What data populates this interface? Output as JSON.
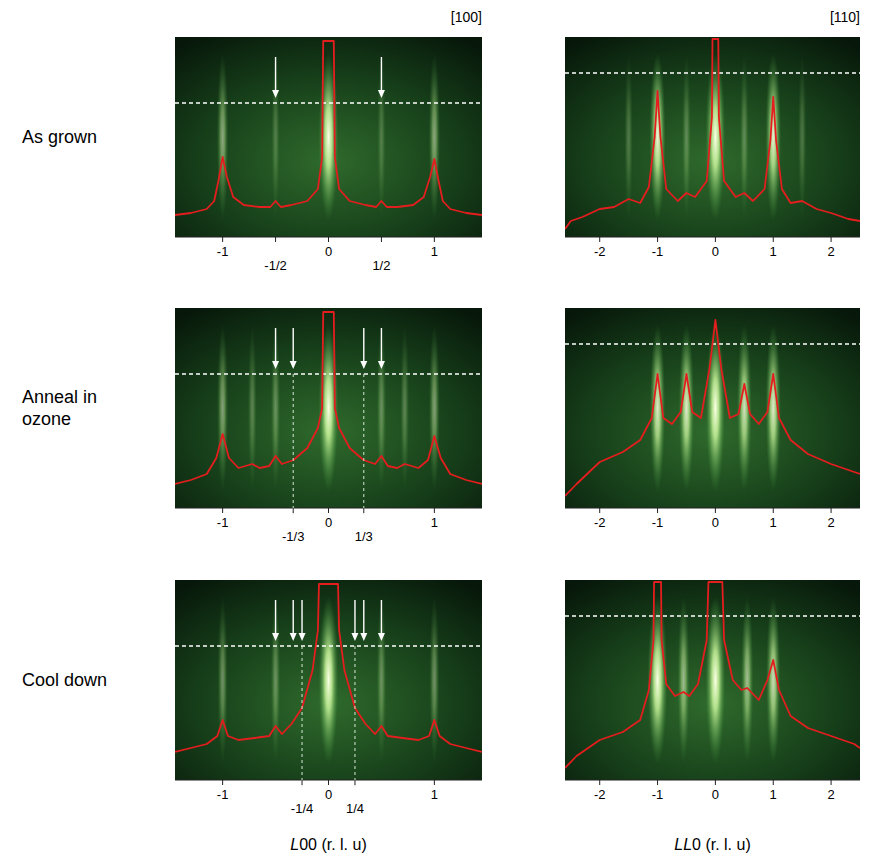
{
  "column_labels": [
    "[100]",
    "[110]"
  ],
  "row_labels": [
    "As grown",
    "Anneal in ozone",
    "Cool down"
  ],
  "chart_data": [
    {
      "type": "line",
      "tick_labels": "x",
      "grid": false,
      "xlim": [
        -1.45,
        1.45
      ],
      "ylim": [
        0,
        100
      ],
      "xticks": [
        -1,
        {
          "value": -0.5,
          "label": "-1/2"
        },
        0,
        {
          "value": 0.5,
          "label": "1/2"
        },
        1
      ],
      "arrows": [
        -0.5,
        0.5
      ],
      "x": [
        -1.45,
        -1.3,
        -1.15,
        -1.08,
        -1.04,
        -1.0,
        -0.96,
        -0.9,
        -0.8,
        -0.65,
        -0.55,
        -0.5,
        -0.45,
        -0.35,
        -0.2,
        -0.1,
        -0.06,
        -0.05,
        0.05,
        0.06,
        0.1,
        0.2,
        0.35,
        0.45,
        0.5,
        0.55,
        0.65,
        0.8,
        0.9,
        0.96,
        1.0,
        1.04,
        1.08,
        1.15,
        1.3,
        1.45
      ],
      "series": [
        {
          "color": "#e41e1e",
          "values": [
            11,
            12,
            14,
            18,
            28,
            40,
            30,
            20,
            16,
            15,
            15,
            18,
            15,
            16,
            18,
            24,
            40,
            98,
            98,
            40,
            24,
            18,
            16,
            15,
            18,
            15,
            15,
            16,
            20,
            30,
            39,
            28,
            18,
            14,
            12,
            11
          ]
        }
      ]
    },
    {
      "type": "line",
      "tick_labels": "x",
      "grid": false,
      "xlim": [
        -2.6,
        2.5
      ],
      "ylim": [
        0,
        100
      ],
      "xticks": [
        -2,
        -1,
        0,
        1,
        2
      ],
      "x": [
        -2.6,
        -2.5,
        -2.3,
        -2.0,
        -1.75,
        -1.5,
        -1.3,
        -1.15,
        -1.05,
        -1.0,
        -0.95,
        -0.85,
        -0.65,
        -0.5,
        -0.35,
        -0.15,
        -0.06,
        -0.05,
        0.05,
        0.06,
        0.15,
        0.35,
        0.5,
        0.65,
        0.85,
        0.95,
        1.0,
        1.05,
        1.15,
        1.3,
        1.5,
        1.75,
        2.0,
        2.3,
        2.5
      ],
      "series": [
        {
          "color": "#e41e1e",
          "values": [
            4,
            8,
            10,
            14,
            15,
            19,
            17,
            25,
            50,
            73,
            50,
            24,
            18,
            22,
            20,
            28,
            60,
            99,
            99,
            60,
            28,
            20,
            22,
            18,
            24,
            48,
            70,
            48,
            24,
            17,
            18,
            14,
            12,
            9,
            8
          ]
        }
      ]
    },
    {
      "type": "line",
      "tick_labels": "x",
      "grid": true,
      "xlim": [
        -1.45,
        1.45
      ],
      "ylim": [
        0,
        100
      ],
      "xticks": [
        -1,
        {
          "value": -0.3333,
          "label": "-1/3"
        },
        0,
        {
          "value": 0.3333,
          "label": "1/3"
        },
        1
      ],
      "arrows": [
        -0.5,
        -0.3333,
        0.3333,
        0.5
      ],
      "x": [
        -1.45,
        -1.3,
        -1.15,
        -1.06,
        -1.0,
        -0.94,
        -0.85,
        -0.72,
        -0.65,
        -0.56,
        -0.5,
        -0.44,
        -0.33,
        -0.2,
        -0.1,
        -0.06,
        -0.05,
        0.05,
        0.06,
        0.1,
        0.2,
        0.33,
        0.44,
        0.5,
        0.56,
        0.65,
        0.72,
        0.85,
        0.94,
        1.0,
        1.06,
        1.15,
        1.3,
        1.45
      ],
      "series": [
        {
          "color": "#e41e1e",
          "values": [
            12,
            14,
            17,
            25,
            37,
            25,
            20,
            22,
            20,
            21,
            26,
            22,
            24,
            30,
            40,
            50,
            98,
            98,
            50,
            40,
            30,
            24,
            22,
            26,
            21,
            20,
            22,
            20,
            24,
            36,
            25,
            17,
            14,
            12
          ]
        }
      ]
    },
    {
      "type": "line",
      "tick_labels": "x",
      "grid": false,
      "xlim": [
        -2.6,
        2.5
      ],
      "ylim": [
        0,
        100
      ],
      "xticks": [
        -2,
        -1,
        0,
        1,
        2
      ],
      "x": [
        -2.6,
        -2.4,
        -2.0,
        -1.6,
        -1.3,
        -1.1,
        -1.0,
        -0.9,
        -0.75,
        -0.6,
        -0.5,
        -0.4,
        -0.25,
        -0.1,
        0.0,
        0.1,
        0.25,
        0.4,
        0.5,
        0.6,
        0.75,
        0.9,
        1.0,
        1.1,
        1.3,
        1.6,
        2.0,
        2.4,
        2.5
      ],
      "series": [
        {
          "color": "#e41e1e",
          "values": [
            6,
            12,
            23,
            28,
            34,
            45,
            67,
            45,
            42,
            48,
            67,
            48,
            45,
            70,
            94,
            70,
            45,
            47,
            62,
            47,
            42,
            48,
            67,
            45,
            34,
            27,
            22,
            18,
            17
          ]
        }
      ]
    },
    {
      "type": "line",
      "tick_labels": "x",
      "grid": true,
      "xlabel": "L00 (r. l. u)",
      "xlim": [
        -1.45,
        1.45
      ],
      "ylim": [
        0,
        100
      ],
      "xticks": [
        -1,
        {
          "value": -0.25,
          "label": "-1/4"
        },
        0,
        {
          "value": 0.25,
          "label": "1/4"
        },
        1
      ],
      "arrows": [
        -0.5,
        -0.3333,
        -0.25,
        0.25,
        0.3333,
        0.5
      ],
      "x": [
        -1.45,
        -1.3,
        -1.15,
        -1.05,
        -1.0,
        -0.95,
        -0.85,
        -0.7,
        -0.56,
        -0.5,
        -0.44,
        -0.35,
        -0.25,
        -0.15,
        -0.1,
        -0.09,
        0.09,
        0.1,
        0.15,
        0.25,
        0.35,
        0.44,
        0.5,
        0.56,
        0.7,
        0.85,
        0.95,
        1.0,
        1.05,
        1.15,
        1.3,
        1.45
      ],
      "series": [
        {
          "color": "#e41e1e",
          "values": [
            14,
            16,
            18,
            22,
            30,
            22,
            20,
            21,
            22,
            27,
            23,
            28,
            36,
            55,
            75,
            98,
            98,
            75,
            55,
            36,
            28,
            23,
            27,
            22,
            21,
            20,
            22,
            30,
            22,
            18,
            16,
            14
          ]
        }
      ]
    },
    {
      "type": "line",
      "tick_labels": "x",
      "grid": false,
      "xlabel": "LL0 (r. l. u)",
      "xlim": [
        -2.6,
        2.5
      ],
      "ylim": [
        0,
        100
      ],
      "xticks": [
        -2,
        -1,
        0,
        1,
        2
      ],
      "x": [
        -2.6,
        -2.4,
        -2.0,
        -1.6,
        -1.3,
        -1.15,
        -1.07,
        -1.06,
        -0.94,
        -0.93,
        -0.85,
        -0.7,
        -0.55,
        -0.45,
        -0.3,
        -0.15,
        -0.12,
        0.12,
        0.15,
        0.3,
        0.45,
        0.55,
        0.75,
        0.9,
        1.0,
        1.1,
        1.3,
        1.6,
        2.0,
        2.4,
        2.5
      ],
      "series": [
        {
          "color": "#e41e1e",
          "values": [
            6,
            12,
            20,
            24,
            30,
            45,
            70,
            99,
            99,
            70,
            48,
            42,
            44,
            42,
            48,
            70,
            99,
            99,
            70,
            50,
            45,
            46,
            40,
            50,
            60,
            45,
            32,
            26,
            22,
            18,
            16
          ]
        }
      ]
    }
  ]
}
